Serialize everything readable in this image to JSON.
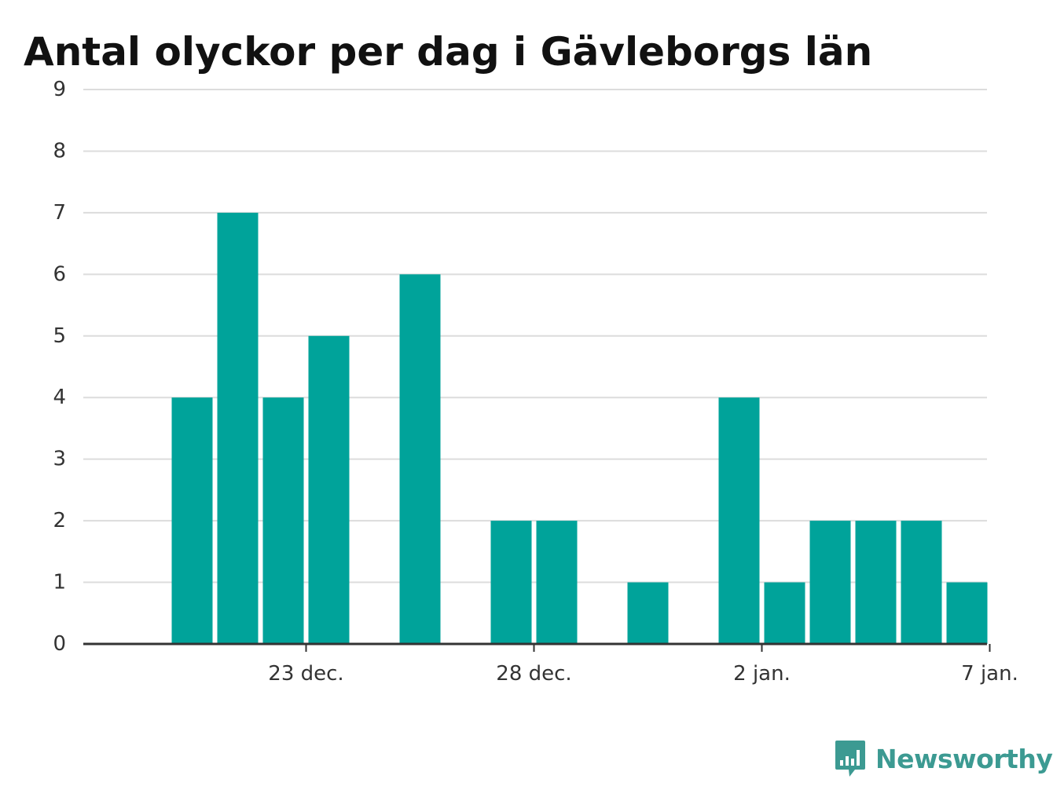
{
  "chart_data": {
    "type": "bar",
    "title": "Antal olyckor per dag i Gävleborgs län",
    "xlabel": "",
    "ylabel": "",
    "x_axis": {
      "type": "date",
      "start": "2023-12-19",
      "end": "2024-01-07",
      "ticks": [
        {
          "date": "2023-12-23",
          "label": "23 dec."
        },
        {
          "date": "2023-12-28",
          "label": "28 dec."
        },
        {
          "date": "2024-01-02",
          "label": "2 jan."
        },
        {
          "date": "2024-01-07",
          "label": "7 jan."
        }
      ]
    },
    "ylim": [
      0,
      9
    ],
    "yticks": [
      0,
      1,
      2,
      3,
      4,
      5,
      6,
      7,
      8,
      9
    ],
    "grid": true,
    "legend": "none",
    "bar_color": "#00a39a",
    "data": [
      {
        "date": "2023-12-19",
        "value": 0
      },
      {
        "date": "2023-12-20",
        "value": 4
      },
      {
        "date": "2023-12-21",
        "value": 7
      },
      {
        "date": "2023-12-22",
        "value": 4
      },
      {
        "date": "2023-12-23",
        "value": 5
      },
      {
        "date": "2023-12-24",
        "value": 0
      },
      {
        "date": "2023-12-25",
        "value": 6
      },
      {
        "date": "2023-12-26",
        "value": 0
      },
      {
        "date": "2023-12-27",
        "value": 2
      },
      {
        "date": "2023-12-28",
        "value": 2
      },
      {
        "date": "2023-12-29",
        "value": 0
      },
      {
        "date": "2023-12-30",
        "value": 1
      },
      {
        "date": "2023-12-31",
        "value": 0
      },
      {
        "date": "2024-01-01",
        "value": 4
      },
      {
        "date": "2024-01-02",
        "value": 1
      },
      {
        "date": "2024-01-03",
        "value": 2
      },
      {
        "date": "2024-01-04",
        "value": 2
      },
      {
        "date": "2024-01-05",
        "value": 2
      },
      {
        "date": "2024-01-06",
        "value": 1
      }
    ]
  },
  "brand": {
    "name": "Newsworthy",
    "color": "#3c9a92",
    "icon": "newsworthy-logo-icon"
  }
}
